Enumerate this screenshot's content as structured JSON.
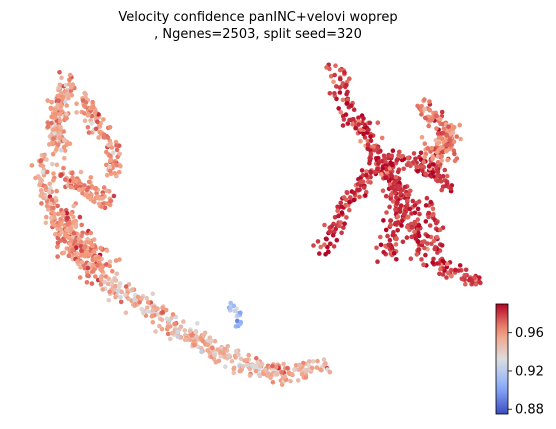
{
  "chart_data": {
    "type": "scatter",
    "title_lines": [
      "Velocity confidence panINC+velovi woprep",
      ", Ngenes=2503, split seed=320"
    ],
    "xlabel": "",
    "ylabel": "",
    "axes_visible": false,
    "grid": false,
    "colormap": "coolwarm",
    "colorbar": {
      "placement": "bottom-right",
      "range": [
        0.875,
        0.99
      ],
      "ticks": [
        0.88,
        0.92,
        0.96
      ],
      "tick_labels": [
        "0.88",
        "0.92",
        "0.96"
      ]
    },
    "clusters": [
      {
        "id": "left-upper-arm",
        "value_mean": 0.958,
        "value_sd": 0.01
      },
      {
        "id": "left-middle",
        "value_mean": 0.962,
        "value_sd": 0.008
      },
      {
        "id": "left-tail",
        "value_mean": 0.95,
        "value_sd": 0.012
      },
      {
        "id": "small-blue-group",
        "value_mean": 0.905,
        "value_sd": 0.015
      },
      {
        "id": "right-x-shape",
        "value_mean": 0.98,
        "value_sd": 0.008
      },
      {
        "id": "right-upper-lobe",
        "value_mean": 0.966,
        "value_sd": 0.008
      }
    ],
    "colors": {
      "low": "#3b4cc0",
      "mid": "#dddddd",
      "high": "#b40426"
    }
  }
}
